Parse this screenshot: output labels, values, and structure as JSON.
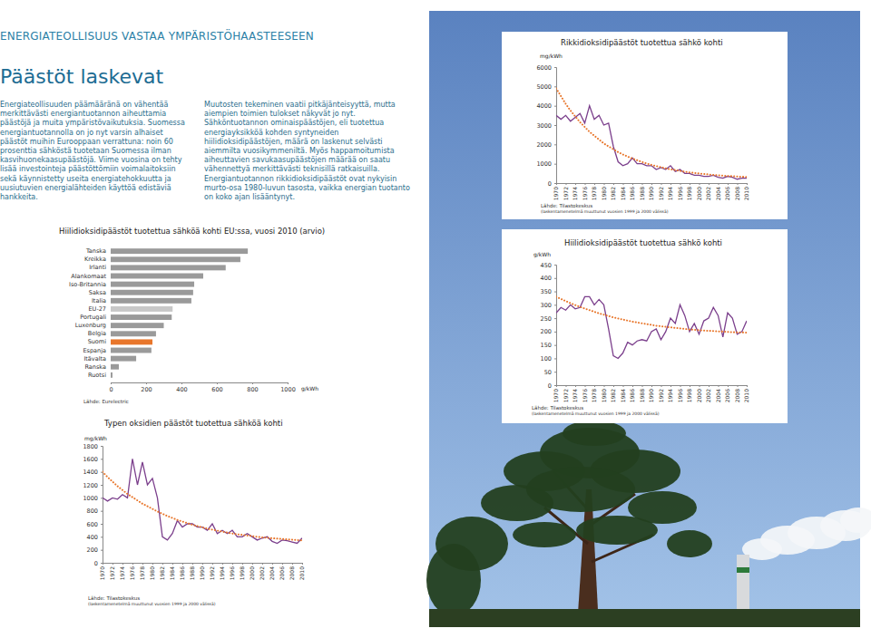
{
  "page": {
    "header": "ENERGIATEOLLISUUS VASTAA YMPÄRISTÖHAASTEESEEN",
    "heading": "Päästöt laskevat",
    "paragraphs": [
      "Energiateollisuuden päämääränä on vähentää merkittävästi energiantuotannon aiheuttamia päästöjä ja muita ympäristövaikutuksia. Suomessa energiantuotannolla on jo nyt varsin alhaiset päästöt muihin Eurooppaan verrattuna: noin 60 prosenttia sähköstä tuotetaan Suomessa ilman kasvihuonekaasupäästöjä. Viime vuosina on tehty lisää investointeja päästöttömiin voimalaitoksiin sekä käynnistetty useita energiatehokkuutta ja uusiutuvien energialähteiden käyttöä edistäviä hankkeita.",
      "Muutosten tekeminen vaatii pitkäjänteisyyttä, mutta aiempien toimien tulokset näkyvät jo nyt. Sähköntuotannon ominaispäästöjen, eli tuotettua energiayksikköä kohden syntyneiden hiilidioksidipäästöjen, määrä on laskenut selvästi aiemmilta vuosikymmeniltä. Myös happamoitumista aiheuttavien savukaasupäästöjen määrää on saatu vähennettyä merkittävästi teknisillä ratkaisuilla. Energiantuotannon rikkidioksidipäästöt ovat nykyisin murto-osa 1980-luvun tasosta, vaikka energian tuotanto on koko ajan lisääntynyt."
    ]
  },
  "chart_data": [
    {
      "type": "line",
      "title": "Rikkidioksidipäästöt tuotettua sähkö kohti",
      "y_label": "mg/kWh",
      "source": "Lähde: Tilastokeskus",
      "note": "(laskentamenetelmä muuttunut vuosien 1999 ja 2000 välissä)",
      "x": [
        1970,
        1971,
        1972,
        1973,
        1974,
        1975,
        1976,
        1977,
        1978,
        1979,
        1980,
        1981,
        1982,
        1983,
        1984,
        1985,
        1986,
        1987,
        1988,
        1989,
        1990,
        1991,
        1992,
        1993,
        1994,
        1995,
        1996,
        1997,
        1998,
        1999,
        2000,
        2001,
        2002,
        2003,
        2004,
        2005,
        2006,
        2007,
        2008,
        2009,
        2010
      ],
      "xlim": [
        1970,
        2010
      ],
      "xticks": [
        1970,
        1972,
        1974,
        1976,
        1978,
        1980,
        1982,
        1984,
        1986,
        1988,
        1990,
        1992,
        1994,
        1996,
        1998,
        2000,
        2002,
        2004,
        2006,
        2008,
        2010
      ],
      "ylim": [
        0,
        6000
      ],
      "yticks": [
        0,
        1000,
        2000,
        3000,
        4000,
        5000,
        6000
      ],
      "series": [
        {
          "color": "#7b3f8c",
          "line_style": "solid",
          "values": [
            3500,
            3300,
            3500,
            3200,
            3400,
            3600,
            3100,
            4000,
            3300,
            3500,
            3000,
            3100,
            1900,
            1100,
            900,
            1000,
            1300,
            1000,
            1000,
            900,
            900,
            700,
            800,
            700,
            900,
            600,
            700,
            500,
            500,
            400,
            400,
            350,
            350,
            400,
            300,
            250,
            350,
            300,
            200,
            250,
            250
          ]
        },
        {
          "color": "#e8762b",
          "line_style": "dotted",
          "values": [
            4900,
            4500,
            4100,
            3750,
            3450,
            3150,
            2900,
            2650,
            2450,
            2250,
            2050,
            1900,
            1750,
            1600,
            1480,
            1370,
            1270,
            1180,
            1090,
            1010,
            940,
            880,
            820,
            760,
            710,
            670,
            630,
            590,
            555,
            525,
            495,
            470,
            445,
            425,
            405,
            385,
            370,
            355,
            340,
            325,
            315
          ]
        }
      ]
    },
    {
      "type": "line",
      "title": "Hiilidioksidipäästöt tuotettua sähkö kohti",
      "y_label": "g/kWh",
      "source": "Lähde: Tilastokeskus",
      "note": "(laskentamenetelmä muuttunut vuosien 1999 ja 2000 välissä)",
      "x": [
        1970,
        1971,
        1972,
        1973,
        1974,
        1975,
        1976,
        1977,
        1978,
        1979,
        1980,
        1981,
        1982,
        1983,
        1984,
        1985,
        1986,
        1987,
        1988,
        1989,
        1990,
        1991,
        1992,
        1993,
        1994,
        1995,
        1996,
        1997,
        1998,
        1999,
        2000,
        2001,
        2002,
        2003,
        2004,
        2005,
        2006,
        2007,
        2008,
        2009,
        2010
      ],
      "xlim": [
        1970,
        2010
      ],
      "xticks": [
        1970,
        1972,
        1974,
        1976,
        1978,
        1980,
        1982,
        1984,
        1986,
        1988,
        1990,
        1992,
        1994,
        1996,
        1998,
        2000,
        2002,
        2004,
        2006,
        2008,
        2010
      ],
      "ylim": [
        0,
        450
      ],
      "yticks": [
        0,
        50,
        100,
        150,
        200,
        250,
        300,
        350,
        400,
        450
      ],
      "series": [
        {
          "color": "#7b3f8c",
          "line_style": "solid",
          "values": [
            270,
            290,
            280,
            300,
            285,
            290,
            330,
            330,
            300,
            320,
            300,
            210,
            110,
            100,
            120,
            160,
            150,
            165,
            170,
            165,
            200,
            210,
            170,
            200,
            250,
            230,
            300,
            260,
            200,
            230,
            190,
            240,
            250,
            290,
            260,
            180,
            270,
            250,
            190,
            200,
            240
          ]
        },
        {
          "color": "#e8762b",
          "line_style": "dotted",
          "values": [
            330,
            322,
            314,
            306,
            299,
            292,
            286,
            280,
            274,
            268,
            263,
            258,
            253,
            249,
            245,
            241,
            237,
            234,
            231,
            228,
            225,
            222,
            220,
            218,
            216,
            214,
            212,
            210,
            208,
            207,
            205,
            204,
            203,
            202,
            201,
            200,
            199,
            198,
            197,
            197,
            196
          ]
        }
      ]
    },
    {
      "type": "bar",
      "orientation": "horizontal",
      "title": "Hiilidioksidipäästöt tuotettua sähköä kohti EU:ssa, vuosi 2010 (arvio)",
      "x_label": "g/kWh",
      "source": "Lähde: Eurelectric",
      "categories": [
        "Tanska",
        "Kreikka",
        "Irlanti",
        "Alankomaat",
        "Iso-Britannia",
        "Saksa",
        "Italia",
        "EU-27",
        "Portugali",
        "Luxenburg",
        "Belgia",
        "Suomi",
        "Espanja",
        "Itävalta",
        "Ranska",
        "Ruotsi"
      ],
      "values": [
        775,
        733,
        650,
        523,
        472,
        466,
        456,
        350,
        345,
        300,
        256,
        236,
        230,
        144,
        46,
        10
      ],
      "colors": [
        "#9a9a9a",
        "#9a9a9a",
        "#9a9a9a",
        "#9a9a9a",
        "#9a9a9a",
        "#9a9a9a",
        "#9a9a9a",
        "#c8c8c8",
        "#9a9a9a",
        "#9a9a9a",
        "#9a9a9a",
        "#e8762b",
        "#9a9a9a",
        "#9a9a9a",
        "#9a9a9a",
        "#9a9a9a"
      ],
      "xlim": [
        0,
        1000
      ],
      "xticks": [
        0,
        200,
        400,
        600,
        800,
        1000
      ]
    },
    {
      "type": "line",
      "title": "Typen oksidien päästöt tuotettua sähköä kohti",
      "y_label": "mg/kWh",
      "source": "Lähde: Tilastokeskus",
      "note": "(laskentamenetelmä muuttunut vuosien 1999 ja 2000 välissä)",
      "x": [
        1970,
        1971,
        1972,
        1973,
        1974,
        1975,
        1976,
        1977,
        1978,
        1979,
        1980,
        1981,
        1982,
        1983,
        1984,
        1985,
        1986,
        1987,
        1988,
        1989,
        1990,
        1991,
        1992,
        1993,
        1994,
        1995,
        1996,
        1997,
        1998,
        1999,
        2000,
        2001,
        2002,
        2003,
        2004,
        2005,
        2006,
        2007,
        2008,
        2009,
        2010
      ],
      "xlim": [
        1970,
        2010
      ],
      "xticks": [
        1970,
        1972,
        1974,
        1976,
        1978,
        1980,
        1982,
        1984,
        1986,
        1988,
        1990,
        1992,
        1994,
        1996,
        1998,
        2000,
        2002,
        2004,
        2006,
        2008,
        2010
      ],
      "ylim": [
        0,
        1800
      ],
      "yticks": [
        0,
        200,
        400,
        600,
        800,
        1000,
        1200,
        1400,
        1600,
        1800
      ],
      "series": [
        {
          "color": "#7b3f8c",
          "line_style": "solid",
          "values": [
            1000,
            950,
            1000,
            980,
            1050,
            1000,
            1600,
            1200,
            1550,
            1200,
            1300,
            1000,
            400,
            350,
            450,
            650,
            550,
            600,
            600,
            550,
            550,
            500,
            600,
            450,
            500,
            450,
            500,
            400,
            400,
            450,
            400,
            350,
            380,
            400,
            330,
            300,
            350,
            340,
            320,
            300,
            380
          ]
        },
        {
          "color": "#e8762b",
          "line_style": "dotted",
          "values": [
            1400,
            1320,
            1250,
            1180,
            1120,
            1060,
            1010,
            960,
            910,
            870,
            830,
            790,
            755,
            720,
            690,
            660,
            635,
            610,
            585,
            565,
            545,
            525,
            510,
            495,
            480,
            465,
            450,
            440,
            430,
            420,
            410,
            400,
            392,
            385,
            378,
            372,
            366,
            360,
            355,
            350,
            346
          ]
        }
      ]
    }
  ]
}
